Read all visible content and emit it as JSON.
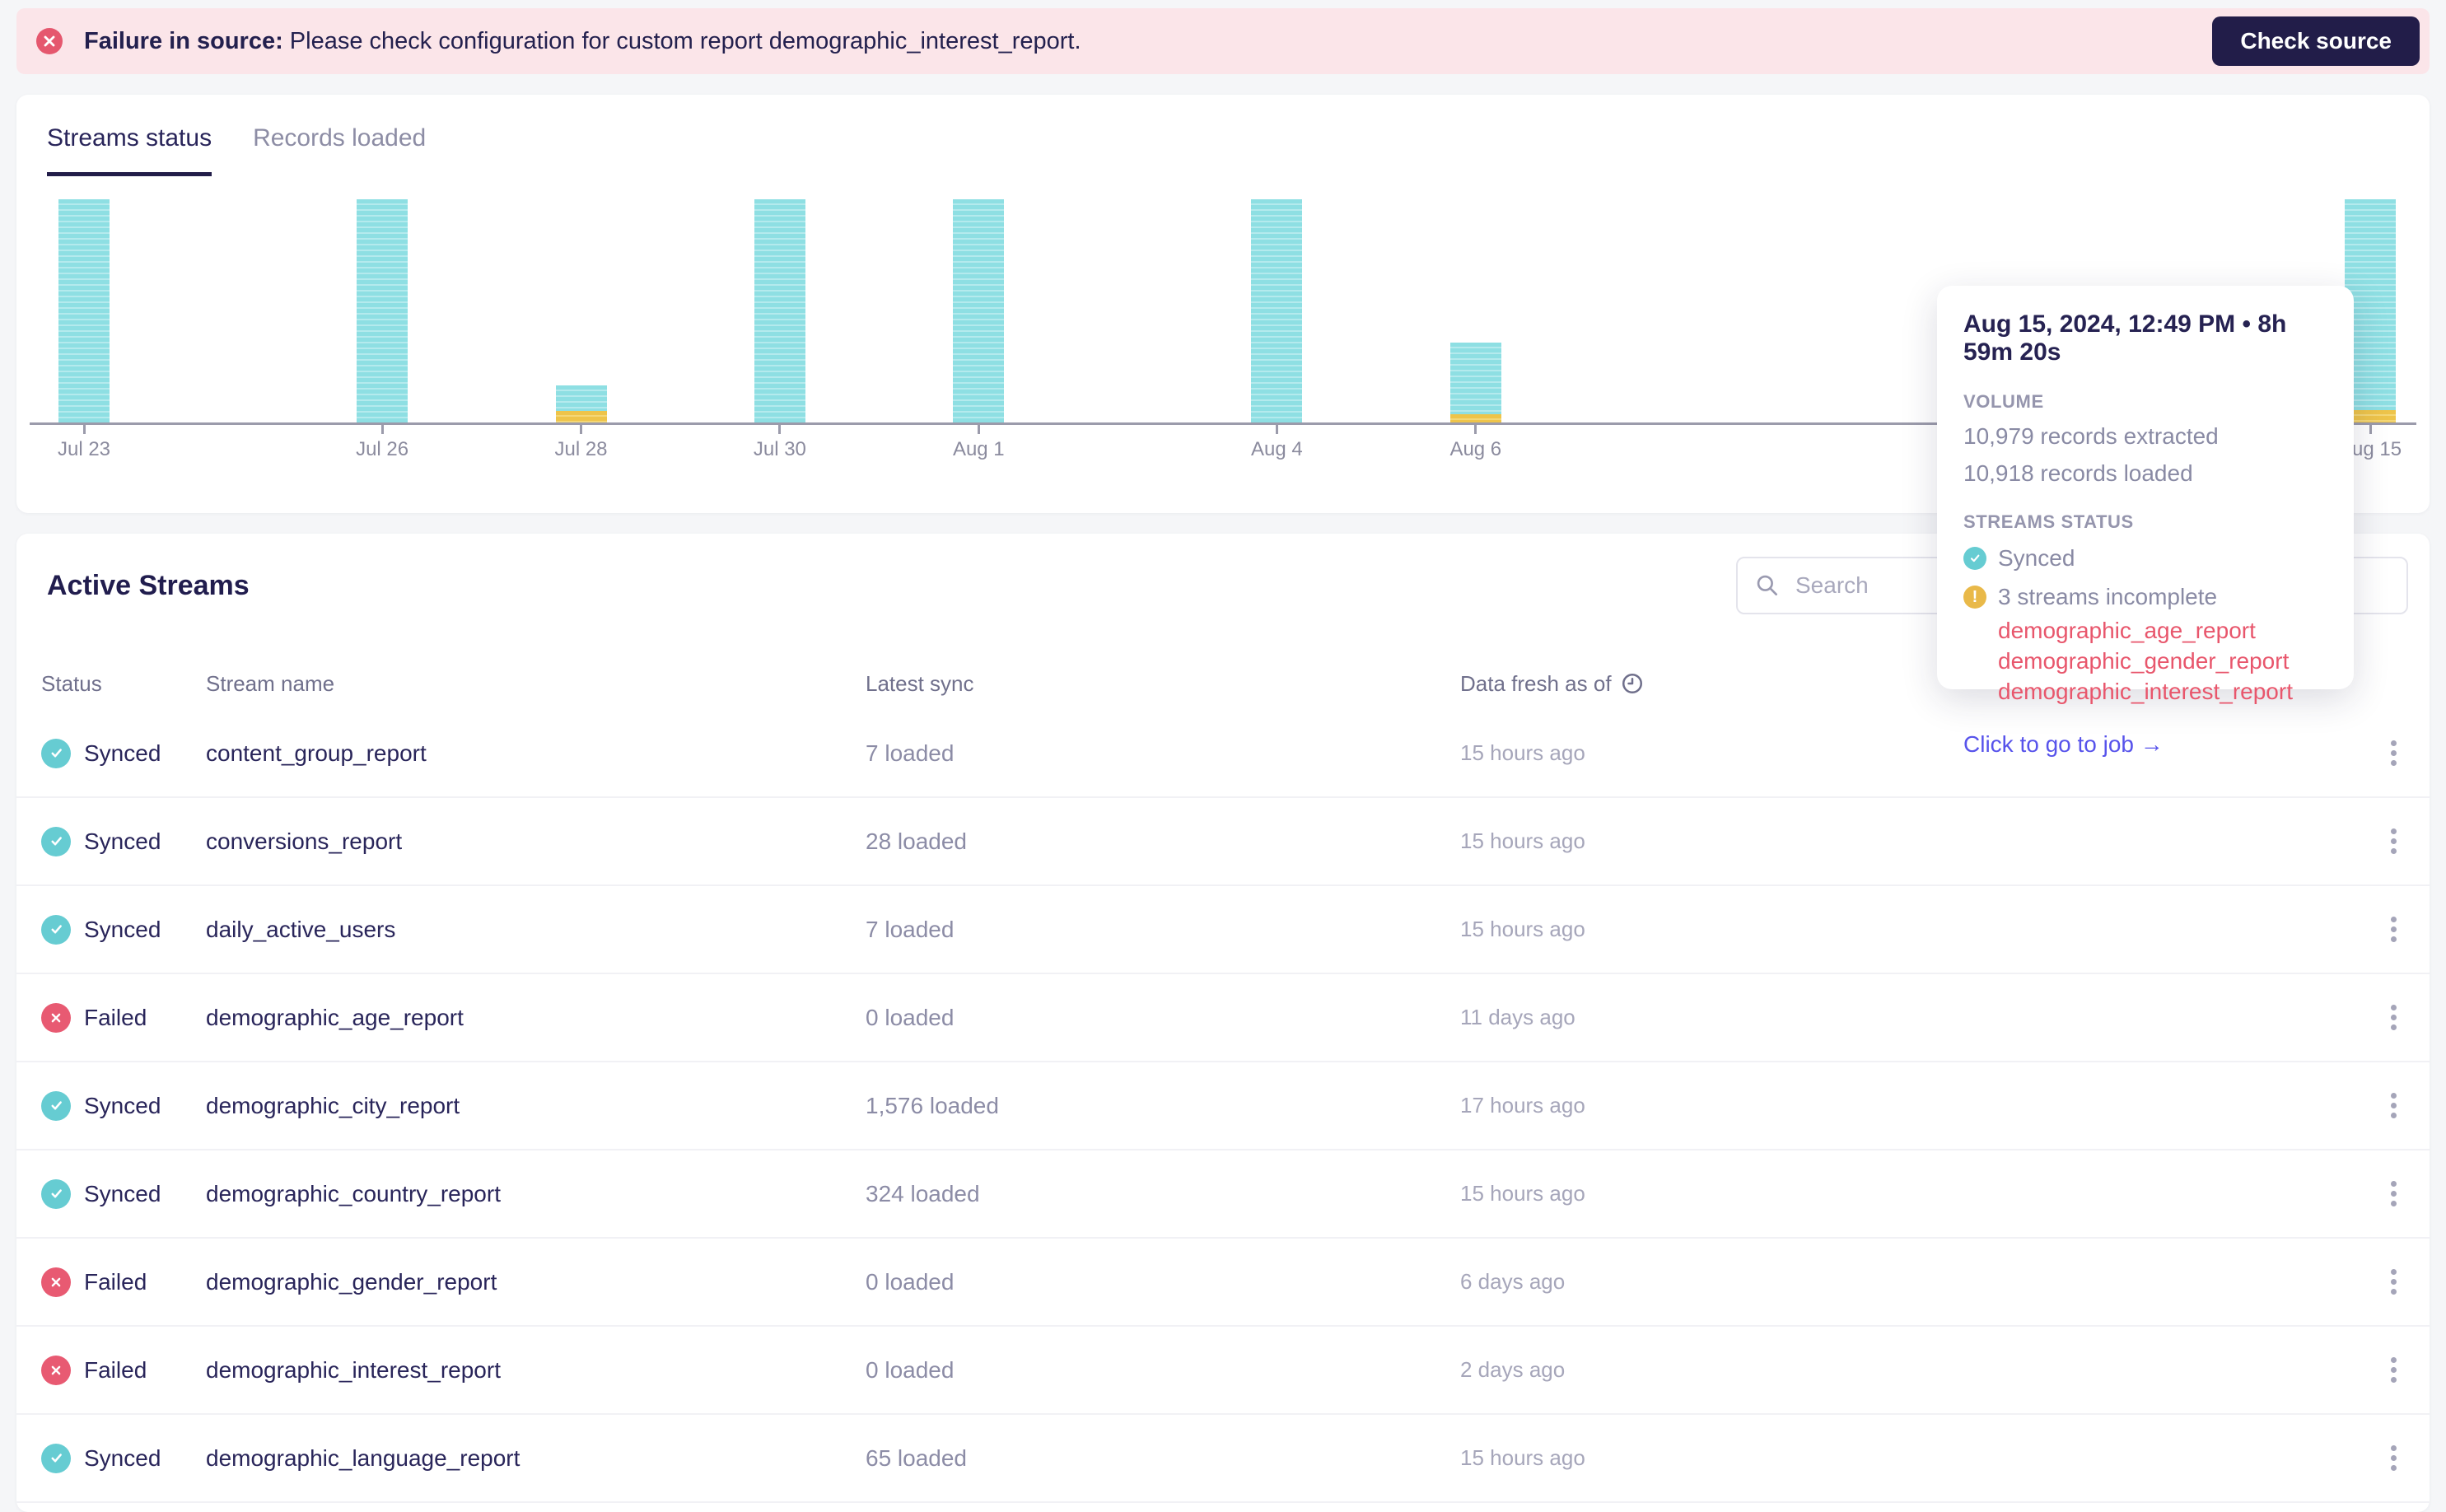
{
  "banner": {
    "message_bold": "Failure in source:",
    "message": "Please check configuration for custom report demographic_interest_report.",
    "button_label": "Check source"
  },
  "tabs": [
    {
      "label": "Streams status",
      "active": true
    },
    {
      "label": "Records loaded",
      "active": false
    }
  ],
  "chart_data": {
    "type": "bar",
    "stacked": true,
    "x_axis": {
      "start": "Jul 23",
      "end": "Aug 15",
      "unit": "day",
      "ticks_only_on_bars": true
    },
    "legend": {
      "synced_color": "#8edfe3",
      "incomplete_color": "#eec44a"
    },
    "bars": [
      {
        "label": "Jul 23",
        "day_index": 0,
        "height_frac": 1.0,
        "warning_frac": 0
      },
      {
        "label": "Jul 26",
        "day_index": 3,
        "height_frac": 1.0,
        "warning_frac": 0
      },
      {
        "label": "Jul 28",
        "day_index": 5,
        "height_frac": 0.165,
        "warning_frac": 0.052
      },
      {
        "label": "Jul 30",
        "day_index": 7,
        "height_frac": 1.0,
        "warning_frac": 0
      },
      {
        "label": "Aug 1",
        "day_index": 9,
        "height_frac": 1.0,
        "warning_frac": 0
      },
      {
        "label": "Aug 4",
        "day_index": 12,
        "height_frac": 1.0,
        "warning_frac": 0
      },
      {
        "label": "Aug 6",
        "day_index": 14,
        "height_frac": 0.358,
        "warning_frac": 0.037
      },
      {
        "label": "Aug 15",
        "day_index": 23,
        "height_frac": 1.0,
        "warning_frac": 0.055
      }
    ],
    "hovered_bar": {
      "label": "Aug 15",
      "records_extracted": 10979,
      "records_loaded": 10918
    }
  },
  "tooltip": {
    "title": "Aug 15, 2024, 12:49 PM • 8h 59m 20s",
    "volume_label": "VOLUME",
    "extracted": "10,979 records extracted",
    "loaded": "10,918 records loaded",
    "streams_status_label": "STREAMS STATUS",
    "synced_label": "Synced",
    "incomplete_label": "3 streams incomplete",
    "incomplete_streams": [
      "demographic_age_report",
      "demographic_gender_report",
      "demographic_interest_report"
    ],
    "job_link": "Click to go to job →"
  },
  "active_streams": {
    "title": "Active Streams",
    "search_placeholder": "Search",
    "columns": [
      "Status",
      "Stream name",
      "Latest sync",
      "Data fresh as of"
    ],
    "rows": [
      {
        "status": "Synced",
        "kind": "synced",
        "stream": "content_group_report",
        "loaded": "7 loaded",
        "fresh": "15 hours ago"
      },
      {
        "status": "Synced",
        "kind": "synced",
        "stream": "conversions_report",
        "loaded": "28 loaded",
        "fresh": "15 hours ago"
      },
      {
        "status": "Synced",
        "kind": "synced",
        "stream": "daily_active_users",
        "loaded": "7 loaded",
        "fresh": "15 hours ago"
      },
      {
        "status": "Failed",
        "kind": "failed",
        "stream": "demographic_age_report",
        "loaded": "0 loaded",
        "fresh": "11 days ago"
      },
      {
        "status": "Synced",
        "kind": "synced",
        "stream": "demographic_city_report",
        "loaded": "1,576 loaded",
        "fresh": "17 hours ago"
      },
      {
        "status": "Synced",
        "kind": "synced",
        "stream": "demographic_country_report",
        "loaded": "324 loaded",
        "fresh": "15 hours ago"
      },
      {
        "status": "Failed",
        "kind": "failed",
        "stream": "demographic_gender_report",
        "loaded": "0 loaded",
        "fresh": "6 days ago"
      },
      {
        "status": "Failed",
        "kind": "failed",
        "stream": "demographic_interest_report",
        "loaded": "0 loaded",
        "fresh": "2 days ago"
      },
      {
        "status": "Synced",
        "kind": "synced",
        "stream": "demographic_language_report",
        "loaded": "65 loaded",
        "fresh": "15 hours ago"
      }
    ]
  },
  "colors": {
    "page_bg": "#f5f6f8",
    "banner_bg": "#fbe5e9",
    "error_red": "#e5576e",
    "dark_navy": "#221d49",
    "bar_teal": "#8edfe3",
    "bar_yellow": "#eec44a",
    "synced_badge": "#66ccd2",
    "failed_badge": "#e85a72",
    "failed_link": "#e8566c",
    "job_link": "#5753eb"
  }
}
